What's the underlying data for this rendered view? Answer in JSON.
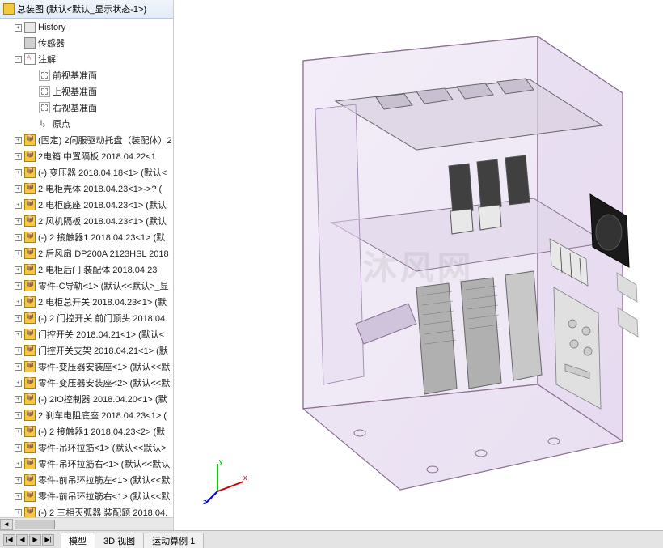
{
  "header": {
    "root_label": "总装图  (默认<默认_显示状态-1>)"
  },
  "tree": {
    "nodes": [
      {
        "level": 1,
        "icon": "hist",
        "label": "History",
        "toggle": "+"
      },
      {
        "level": 1,
        "icon": "sensor",
        "label": "传感器",
        "toggle": " "
      },
      {
        "level": 1,
        "icon": "note",
        "label": "注解",
        "toggle": "-"
      },
      {
        "level": 2,
        "icon": "plane",
        "label": "前视基准面"
      },
      {
        "level": 2,
        "icon": "plane",
        "label": "上视基准面"
      },
      {
        "level": 2,
        "icon": "plane",
        "label": "右视基准面"
      },
      {
        "level": 2,
        "icon": "origin",
        "label": "原点"
      },
      {
        "level": 1,
        "icon": "asm",
        "label": "(固定) 2伺服驱动托盘（装配体）2",
        "toggle": "+"
      },
      {
        "level": 1,
        "icon": "asm",
        "label": "2电箱 中置隔板 2018.04.22<1",
        "toggle": "+"
      },
      {
        "level": 1,
        "icon": "asm",
        "label": "(-) 变压器 2018.04.18<1> (默认<",
        "toggle": "+"
      },
      {
        "level": 1,
        "icon": "asm",
        "label": "2 电柜壳体 2018.04.23<1>->? (",
        "toggle": "+"
      },
      {
        "level": 1,
        "icon": "asm",
        "label": "2 电柜底座 2018.04.23<1> (默认",
        "toggle": "+"
      },
      {
        "level": 1,
        "icon": "asm",
        "label": "2 风机隔板 2018.04.23<1> (默认",
        "toggle": "+"
      },
      {
        "level": 1,
        "icon": "asm",
        "label": "(-) 2 接触器1 2018.04.23<1> (默",
        "toggle": "+"
      },
      {
        "level": 1,
        "icon": "asm",
        "label": "2 后风扇 DP200A 2123HSL 2018",
        "toggle": "+"
      },
      {
        "level": 1,
        "icon": "asm",
        "label": "2 电柜后门 装配体 2018.04.23",
        "toggle": "+"
      },
      {
        "level": 1,
        "icon": "asm",
        "label": "零件-C导轨<1> (默认<<默认>_显",
        "toggle": "+"
      },
      {
        "level": 1,
        "icon": "asm",
        "label": "2 电柜总开关 2018.04.23<1> (默",
        "toggle": "+"
      },
      {
        "level": 1,
        "icon": "asm",
        "label": "(-) 2 门控开关 前门顶头 2018.04.",
        "toggle": "+"
      },
      {
        "level": 1,
        "icon": "asm",
        "label": "门控开关 2018.04.21<1> (默认<",
        "toggle": "+"
      },
      {
        "level": 1,
        "icon": "asm",
        "label": "门控开关支架 2018.04.21<1> (默",
        "toggle": "+"
      },
      {
        "level": 1,
        "icon": "asm",
        "label": "零件-变压器安装座<1> (默认<<默",
        "toggle": "+"
      },
      {
        "level": 1,
        "icon": "asm",
        "label": "零件-变压器安装座<2> (默认<<默",
        "toggle": "+"
      },
      {
        "level": 1,
        "icon": "asm",
        "label": "(-) 2IO控制器 2018.04.20<1> (默",
        "toggle": "+"
      },
      {
        "level": 1,
        "icon": "asm",
        "label": "2 刹车电阻底座 2018.04.23<1> (",
        "toggle": "+"
      },
      {
        "level": 1,
        "icon": "asm",
        "label": "(-) 2 接触器1 2018.04.23<2> (默",
        "toggle": "+"
      },
      {
        "level": 1,
        "icon": "asm",
        "label": "零件-吊环拉筋<1> (默认<<默认>",
        "toggle": "+"
      },
      {
        "level": 1,
        "icon": "asm",
        "label": "零件-吊环拉筋右<1> (默认<<默认",
        "toggle": "+"
      },
      {
        "level": 1,
        "icon": "asm",
        "label": "零件-前吊环拉筋左<1> (默认<<默",
        "toggle": "+"
      },
      {
        "level": 1,
        "icon": "asm",
        "label": "零件-前吊环拉筋右<1> (默认<<默",
        "toggle": "+"
      },
      {
        "level": 1,
        "icon": "asm",
        "label": "(-) 2 三相灭弧器 装配题 2018.04.",
        "toggle": "+"
      }
    ]
  },
  "axis": {
    "x": "x",
    "y": "y",
    "z": "z"
  },
  "tabs": [
    {
      "label": "模型",
      "active": true
    },
    {
      "label": "3D 视图",
      "active": false
    },
    {
      "label": "运动算例 1",
      "active": false
    }
  ],
  "tab_btns": [
    "|◀",
    "◀",
    "▶",
    "▶|"
  ],
  "watermark": "沐风网",
  "model_svg": {
    "cabinet_stroke": "#8a7090",
    "cabinet_fill": "#e8dff0",
    "cabinet_fill_dark": "#d4c6e0",
    "component_fill": "#b8b8b8",
    "component_dark": "#606060",
    "component_light": "#e0e0e0",
    "black": "#2a2a2a"
  }
}
